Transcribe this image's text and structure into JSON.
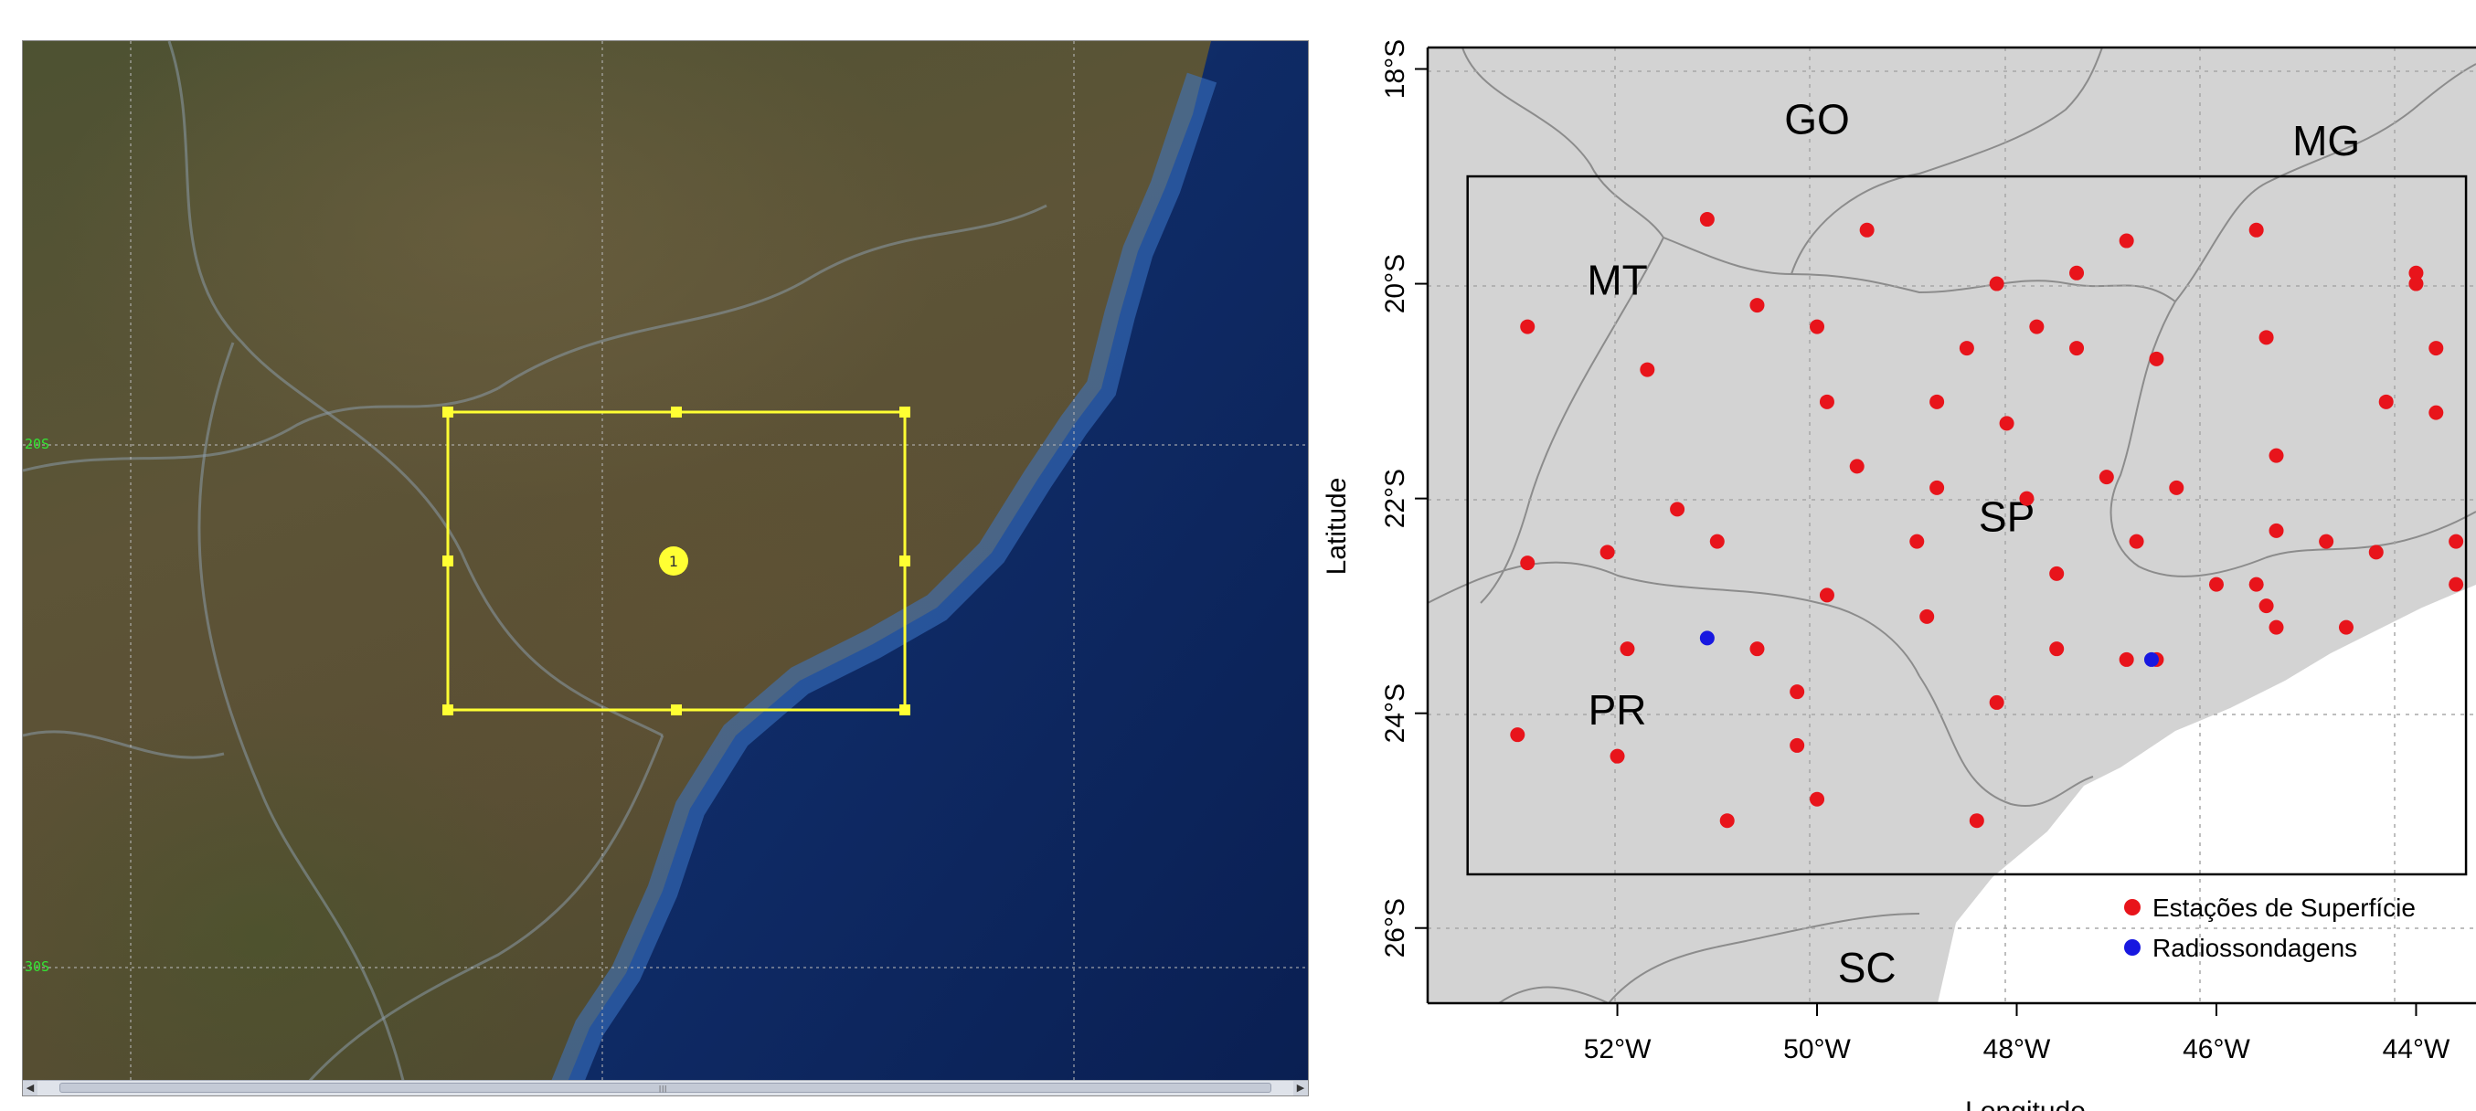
{
  "satellite": {
    "lat_labels": [
      "20S",
      "30S"
    ],
    "domain_box_marker": "1"
  },
  "map": {
    "x_ticks": [
      {
        "lon": -52,
        "label": "52°W"
      },
      {
        "lon": -50,
        "label": "50°W"
      },
      {
        "lon": -48,
        "label": "48°W"
      },
      {
        "lon": -46,
        "label": "46°W"
      },
      {
        "lon": -44,
        "label": "44°W"
      }
    ],
    "y_ticks": [
      {
        "lat": -18,
        "label": "18°S"
      },
      {
        "lat": -20,
        "label": "20°S"
      },
      {
        "lat": -22,
        "label": "22°S"
      },
      {
        "lat": -24,
        "label": "24°S"
      },
      {
        "lat": -26,
        "label": "26°S"
      }
    ],
    "x_label": "Longitude",
    "y_label": "Latitude",
    "lon_range": [
      -53.9,
      -43.4
    ],
    "lat_range": [
      -26.7,
      -17.8
    ],
    "domain_box": {
      "lon_min": -53.5,
      "lon_max": -43.5,
      "lat_min": -25.5,
      "lat_max": -19.0
    },
    "state_labels": [
      {
        "name": "GO",
        "lon": -50.0,
        "lat": -18.5
      },
      {
        "name": "MG",
        "lon": -44.9,
        "lat": -18.7
      },
      {
        "name": "MT",
        "lon": -52.0,
        "lat": -20.0
      },
      {
        "name": "SP",
        "lon": -48.1,
        "lat": -22.2
      },
      {
        "name": "PR",
        "lon": -52.0,
        "lat": -24.0
      },
      {
        "name": "SC",
        "lon": -49.5,
        "lat": -26.4
      }
    ],
    "legend": {
      "position": "bottom-right",
      "items": [
        {
          "label": "Estações de Superfície",
          "color": "#e8141b"
        },
        {
          "label": "Radiossondagens",
          "color": "#1818e0"
        }
      ]
    },
    "surface_stations": [
      [
        -51.1,
        -19.4
      ],
      [
        -49.5,
        -19.5
      ],
      [
        -48.2,
        -20.0
      ],
      [
        -47.4,
        -19.9
      ],
      [
        -46.9,
        -19.6
      ],
      [
        -45.6,
        -19.5
      ],
      [
        -44.0,
        -19.9
      ],
      [
        -44.0,
        -20.0
      ],
      [
        -52.9,
        -20.4
      ],
      [
        -51.7,
        -20.8
      ],
      [
        -50.6,
        -20.2
      ],
      [
        -50.0,
        -20.4
      ],
      [
        -48.5,
        -20.6
      ],
      [
        -47.8,
        -20.4
      ],
      [
        -47.4,
        -20.6
      ],
      [
        -46.6,
        -20.7
      ],
      [
        -45.5,
        -20.5
      ],
      [
        -43.8,
        -20.6
      ],
      [
        -49.9,
        -21.1
      ],
      [
        -48.8,
        -21.1
      ],
      [
        -48.1,
        -21.3
      ],
      [
        -44.3,
        -21.1
      ],
      [
        -43.8,
        -21.2
      ],
      [
        -49.6,
        -21.7
      ],
      [
        -48.8,
        -21.9
      ],
      [
        -47.1,
        -21.8
      ],
      [
        -46.4,
        -21.9
      ],
      [
        -45.4,
        -21.6
      ],
      [
        -51.4,
        -22.1
      ],
      [
        -47.9,
        -22.0
      ],
      [
        -52.9,
        -22.6
      ],
      [
        -52.1,
        -22.5
      ],
      [
        -51.0,
        -22.4
      ],
      [
        -49.0,
        -22.4
      ],
      [
        -46.8,
        -22.4
      ],
      [
        -45.4,
        -22.3
      ],
      [
        -44.9,
        -22.4
      ],
      [
        -44.4,
        -22.5
      ],
      [
        -43.6,
        -22.4
      ],
      [
        -47.6,
        -22.7
      ],
      [
        -49.9,
        -22.9
      ],
      [
        -48.9,
        -23.1
      ],
      [
        -46.0,
        -22.8
      ],
      [
        -45.6,
        -22.8
      ],
      [
        -45.5,
        -23.0
      ],
      [
        -45.4,
        -23.2
      ],
      [
        -44.7,
        -23.2
      ],
      [
        -43.6,
        -22.8
      ],
      [
        -51.9,
        -23.4
      ],
      [
        -50.6,
        -23.4
      ],
      [
        -47.6,
        -23.4
      ],
      [
        -46.9,
        -23.5
      ],
      [
        -46.6,
        -23.5
      ],
      [
        -50.2,
        -23.8
      ],
      [
        -48.2,
        -23.9
      ],
      [
        -53.0,
        -24.2
      ],
      [
        -52.0,
        -24.4
      ],
      [
        -50.2,
        -24.3
      ],
      [
        -50.0,
        -24.8
      ],
      [
        -50.9,
        -25.0
      ],
      [
        -48.4,
        -25.0
      ]
    ],
    "radiosondes": [
      [
        -51.1,
        -23.3
      ],
      [
        -46.65,
        -23.5
      ]
    ]
  }
}
